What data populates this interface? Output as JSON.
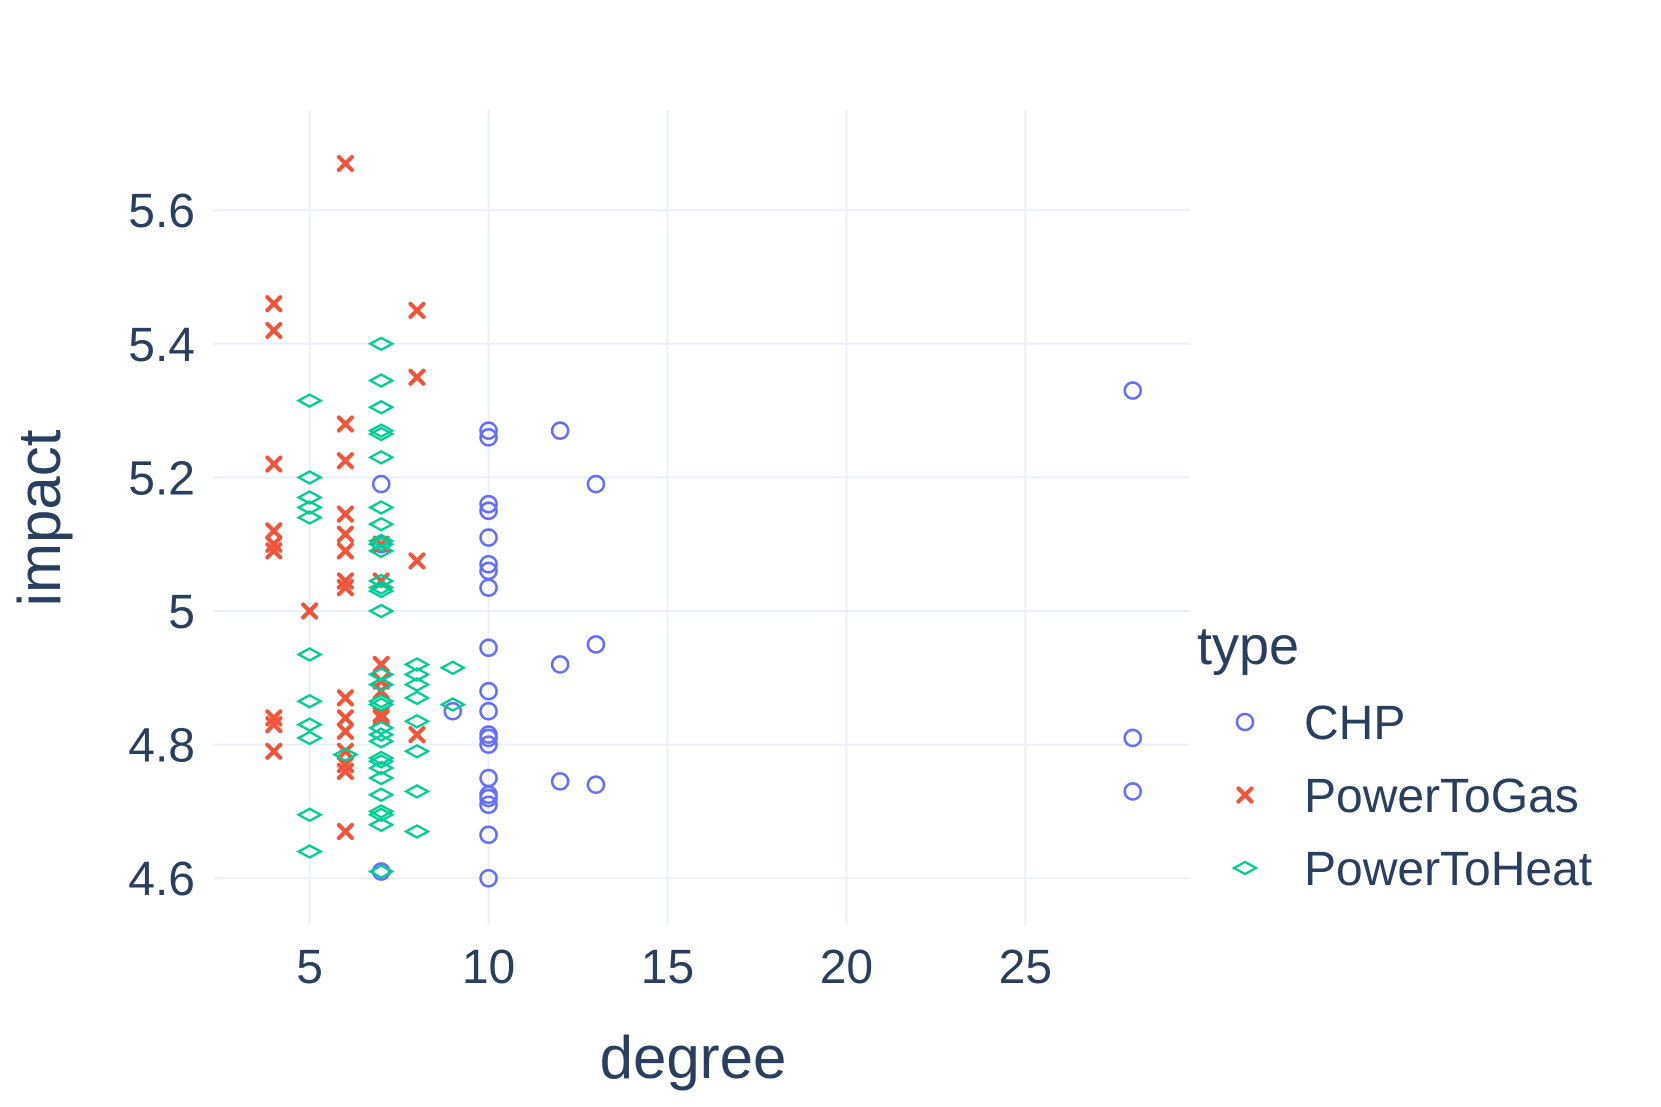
{
  "chart_data": {
    "type": "scatter",
    "title": "",
    "xlabel": "degree",
    "ylabel": "impact",
    "xlim": [
      2.3,
      29.6
    ],
    "ylim": [
      4.53,
      5.75
    ],
    "xticks": [
      5,
      10,
      15,
      20,
      25
    ],
    "yticks": [
      4.6,
      4.8,
      5.0,
      5.2,
      5.4,
      5.6
    ],
    "ytick_labels": [
      "4.6",
      "4.8",
      "5",
      "5.2",
      "5.4",
      "5.6"
    ],
    "grid": true,
    "legend": {
      "title": "type",
      "placement": "right"
    },
    "series": [
      {
        "name": "CHP",
        "marker": "circle-open",
        "color": "#636efa",
        "points": [
          [
            7,
            5.19
          ],
          [
            7,
            5.1
          ],
          [
            7,
            4.61
          ],
          [
            9,
            4.85
          ],
          [
            10,
            5.27
          ],
          [
            10,
            5.26
          ],
          [
            10,
            5.16
          ],
          [
            10,
            5.15
          ],
          [
            10,
            5.11
          ],
          [
            10,
            5.07
          ],
          [
            10,
            5.06
          ],
          [
            10,
            5.035
          ],
          [
            10,
            4.945
          ],
          [
            10,
            4.88
          ],
          [
            10,
            4.85
          ],
          [
            10,
            4.815
          ],
          [
            10,
            4.81
          ],
          [
            10,
            4.8
          ],
          [
            10,
            4.75
          ],
          [
            10,
            4.725
          ],
          [
            10,
            4.72
          ],
          [
            10,
            4.71
          ],
          [
            10,
            4.665
          ],
          [
            10,
            4.6
          ],
          [
            12,
            5.27
          ],
          [
            12,
            4.92
          ],
          [
            12,
            4.745
          ],
          [
            13,
            5.19
          ],
          [
            13,
            4.95
          ],
          [
            13,
            4.74
          ],
          [
            28,
            5.33
          ],
          [
            28,
            4.81
          ],
          [
            28,
            4.73
          ]
        ]
      },
      {
        "name": "PowerToGas",
        "marker": "x",
        "color": "#ef553b",
        "points": [
          [
            4,
            5.46
          ],
          [
            4,
            5.42
          ],
          [
            4,
            5.22
          ],
          [
            4,
            5.12
          ],
          [
            4,
            5.1
          ],
          [
            4,
            5.09
          ],
          [
            4,
            4.84
          ],
          [
            4,
            4.83
          ],
          [
            4,
            4.79
          ],
          [
            5,
            5.0
          ],
          [
            6,
            5.67
          ],
          [
            6,
            5.28
          ],
          [
            6,
            5.225
          ],
          [
            6,
            5.145
          ],
          [
            6,
            5.115
          ],
          [
            6,
            5.09
          ],
          [
            6,
            5.045
          ],
          [
            6,
            5.035
          ],
          [
            6,
            4.87
          ],
          [
            6,
            4.84
          ],
          [
            6,
            4.82
          ],
          [
            6,
            4.79
          ],
          [
            6,
            4.77
          ],
          [
            6,
            4.76
          ],
          [
            6,
            4.67
          ],
          [
            7,
            4.92
          ],
          [
            7,
            4.895
          ],
          [
            7,
            4.88
          ],
          [
            7,
            4.845
          ],
          [
            7,
            4.84
          ],
          [
            7,
            5.1
          ],
          [
            7,
            5.045
          ],
          [
            8,
            5.45
          ],
          [
            8,
            5.35
          ],
          [
            8,
            5.075
          ],
          [
            8,
            4.815
          ]
        ]
      },
      {
        "name": "PowerToHeat",
        "marker": "diamond-open",
        "color": "#00cc96",
        "points": [
          [
            5,
            5.315
          ],
          [
            5,
            5.2
          ],
          [
            5,
            5.17
          ],
          [
            5,
            5.155
          ],
          [
            5,
            5.14
          ],
          [
            5,
            4.935
          ],
          [
            5,
            4.865
          ],
          [
            5,
            4.83
          ],
          [
            5,
            4.81
          ],
          [
            5,
            4.695
          ],
          [
            5,
            4.64
          ],
          [
            6,
            4.785
          ],
          [
            7,
            5.4
          ],
          [
            7,
            5.345
          ],
          [
            7,
            5.305
          ],
          [
            7,
            5.27
          ],
          [
            7,
            5.265
          ],
          [
            7,
            5.23
          ],
          [
            7,
            5.155
          ],
          [
            7,
            5.13
          ],
          [
            7,
            5.105
          ],
          [
            7,
            5.1
          ],
          [
            7,
            5.09
          ],
          [
            7,
            5.045
          ],
          [
            7,
            5.035
          ],
          [
            7,
            5.03
          ],
          [
            7,
            5.0
          ],
          [
            7,
            4.905
          ],
          [
            7,
            4.89
          ],
          [
            7,
            4.865
          ],
          [
            7,
            4.86
          ],
          [
            7,
            4.825
          ],
          [
            7,
            4.815
          ],
          [
            7,
            4.805
          ],
          [
            7,
            4.78
          ],
          [
            7,
            4.775
          ],
          [
            7,
            4.765
          ],
          [
            7,
            4.75
          ],
          [
            7,
            4.725
          ],
          [
            7,
            4.7
          ],
          [
            7,
            4.695
          ],
          [
            7,
            4.68
          ],
          [
            7,
            4.61
          ],
          [
            8,
            4.92
          ],
          [
            8,
            4.905
          ],
          [
            8,
            4.89
          ],
          [
            8,
            4.87
          ],
          [
            8,
            4.835
          ],
          [
            8,
            4.79
          ],
          [
            8,
            4.73
          ],
          [
            8,
            4.67
          ],
          [
            9,
            4.915
          ],
          [
            9,
            4.86
          ]
        ]
      }
    ]
  }
}
